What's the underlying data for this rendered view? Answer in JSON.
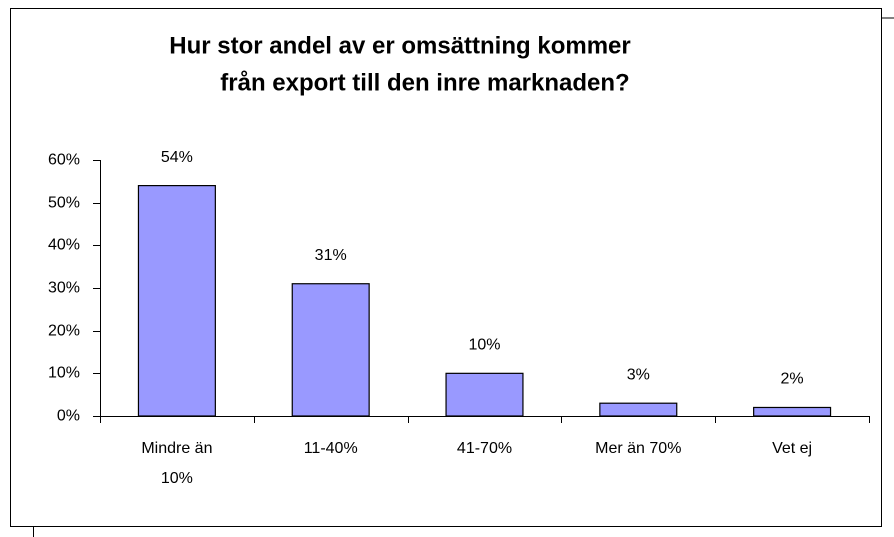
{
  "chart_data": {
    "type": "bar",
    "title": [
      "Hur stor andel av er omsättning kommer",
      "från export till den inre marknaden?"
    ],
    "categories": [
      "Mindre än 10%",
      "11-40%",
      "41-70%",
      "Mer än 70%",
      "Vet ej"
    ],
    "values": [
      54,
      31,
      10,
      3,
      2
    ],
    "value_labels": [
      "54%",
      "31%",
      "10%",
      "3%",
      "2%"
    ],
    "color": "#9999ff",
    "ylim": [
      0,
      60
    ],
    "yticks": [
      {
        "value": 0,
        "label": "0%"
      },
      {
        "value": 10,
        "label": "10%"
      },
      {
        "value": 20,
        "label": "20%"
      },
      {
        "value": 30,
        "label": "30%"
      },
      {
        "value": 40,
        "label": "40%"
      },
      {
        "value": 50,
        "label": "50%"
      },
      {
        "value": 60,
        "label": "60%"
      }
    ],
    "grid": false
  }
}
